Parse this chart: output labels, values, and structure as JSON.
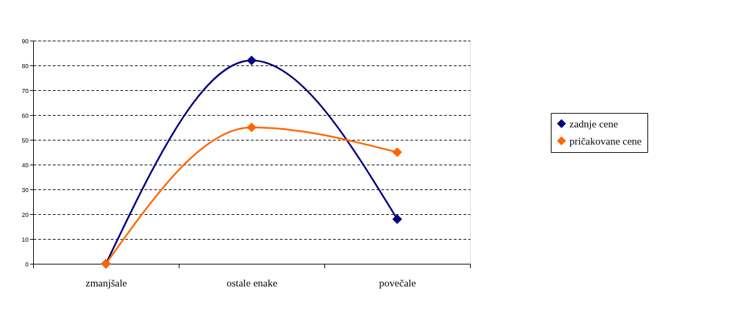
{
  "chart_data": {
    "type": "line",
    "categories": [
      "zmanjšale",
      "ostale enake",
      "povečale"
    ],
    "series": [
      {
        "name": "zadnje cene",
        "color": "#000080",
        "values": [
          0,
          82,
          18
        ]
      },
      {
        "name": "pričakovane cene",
        "color": "#ff6600",
        "values": [
          0,
          55,
          45
        ]
      }
    ],
    "ylim": [
      0,
      90
    ],
    "yticks": [
      0,
      10,
      20,
      30,
      40,
      50,
      60,
      70,
      80,
      90
    ],
    "grid": "y",
    "legend": "right",
    "marker": "diamond",
    "line_style": "solid"
  }
}
